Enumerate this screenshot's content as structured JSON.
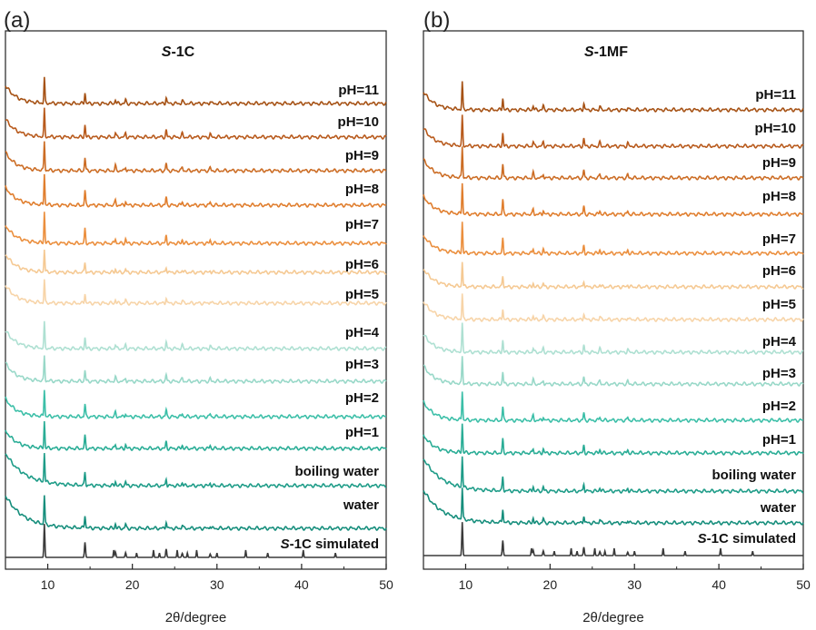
{
  "chart_data": [
    {
      "type": "line",
      "panel_label": "(a)",
      "title_prefix": "S",
      "title_suffix": "-1C",
      "xlabel": "2θ/degree",
      "ylabel": "",
      "xlim": [
        5,
        50
      ],
      "xticks": [
        10,
        20,
        30,
        40,
        50
      ],
      "y_axis_ticks": "none",
      "grid": false,
      "stacked": true,
      "peaks_2theta": [
        9.6,
        14.4,
        18.0,
        19.2,
        24.0,
        25.9,
        29.2
      ],
      "series": [
        {
          "name": "pH=11",
          "color": "#a65215",
          "peak_scale": 0.6
        },
        {
          "name": "pH=10",
          "color": "#b85a1c",
          "peak_scale": 0.65
        },
        {
          "name": "pH=9",
          "color": "#cc6d25",
          "peak_scale": 0.7
        },
        {
          "name": "pH=8",
          "color": "#e07e2e",
          "peak_scale": 0.75
        },
        {
          "name": "pH=7",
          "color": "#eb8f3e",
          "peak_scale": 0.75
        },
        {
          "name": "pH=6",
          "color": "#f5c993",
          "peak_scale": 0.55
        },
        {
          "name": "pH=5",
          "color": "#f7d4a8",
          "peak_scale": 0.55
        },
        {
          "name": "pH=4",
          "color": "#aee0d2",
          "peak_scale": 0.6
        },
        {
          "name": "pH=3",
          "color": "#98d8c8",
          "peak_scale": 0.6
        },
        {
          "name": "pH=2",
          "color": "#3cbfa8",
          "peak_scale": 0.65
        },
        {
          "name": "pH=1",
          "color": "#2aad96",
          "peak_scale": 0.65
        },
        {
          "name": "boiling water",
          "color": "#1e9c88",
          "peak_scale": 0.7
        },
        {
          "name": "water",
          "color": "#168e7c",
          "peak_scale": 0.7
        },
        {
          "name": "-1C simulated",
          "name_prefix": "S",
          "color": "#3a3a3a",
          "peak_scale": 0.8
        }
      ]
    },
    {
      "type": "line",
      "panel_label": "(b)",
      "title_prefix": "S",
      "title_suffix": "-1MF",
      "xlabel": "2θ/degree",
      "ylabel": "",
      "xlim": [
        5,
        50
      ],
      "xticks": [
        10,
        20,
        30,
        40,
        50
      ],
      "y_axis_ticks": "none",
      "grid": false,
      "stacked": true,
      "peaks_2theta": [
        9.6,
        14.4,
        18.0,
        19.2,
        24.0,
        25.9,
        29.2
      ],
      "series": [
        {
          "name": "pH=11",
          "color": "#a65215",
          "peak_scale": 0.65
        },
        {
          "name": "pH=10",
          "color": "#b85a1c",
          "peak_scale": 0.7
        },
        {
          "name": "pH=9",
          "color": "#cc6d25",
          "peak_scale": 0.75
        },
        {
          "name": "pH=8",
          "color": "#e07e2e",
          "peak_scale": 0.75
        },
        {
          "name": "pH=7",
          "color": "#eb8f3e",
          "peak_scale": 0.75
        },
        {
          "name": "pH=6",
          "color": "#f5c993",
          "peak_scale": 0.6
        },
        {
          "name": "pH=5",
          "color": "#f7d4a8",
          "peak_scale": 0.6
        },
        {
          "name": "pH=4",
          "color": "#aee0d2",
          "peak_scale": 0.65
        },
        {
          "name": "pH=3",
          "color": "#98d8c8",
          "peak_scale": 0.65
        },
        {
          "name": "pH=2",
          "color": "#3cbfa8",
          "peak_scale": 0.7
        },
        {
          "name": "pH=1",
          "color": "#2aad96",
          "peak_scale": 0.7
        },
        {
          "name": "boiling water",
          "color": "#1e9c88",
          "peak_scale": 0.75
        },
        {
          "name": "water",
          "color": "#168e7c",
          "peak_scale": 0.75
        },
        {
          "name": "-1C simulated",
          "name_prefix": "S",
          "color": "#3a3a3a",
          "peak_scale": 0.8
        }
      ]
    }
  ]
}
